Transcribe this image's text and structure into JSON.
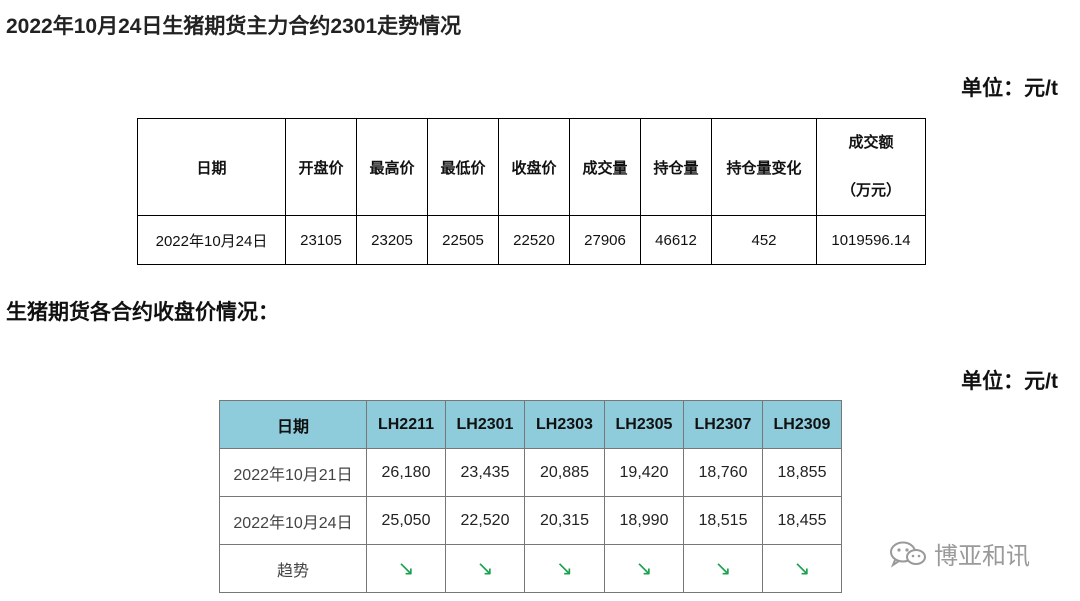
{
  "title": "2022年10月24日生猪期货主力合约2301走势情况",
  "unit_label": "单位：元/t",
  "table1": {
    "headers": [
      "日期",
      "开盘价",
      "最高价",
      "最低价",
      "收盘价",
      "成交量",
      "持仓量",
      "持仓量变化",
      "成交额",
      "（万元）"
    ],
    "row": [
      "2022年10月24日",
      "23105",
      "23205",
      "22505",
      "22520",
      "27906",
      "46612",
      "452",
      "1019596.14"
    ]
  },
  "section_title": "生猪期货各合约收盘价情况：",
  "table2": {
    "headers": [
      "日期",
      "LH2211",
      "LH2301",
      "LH2303",
      "LH2305",
      "LH2307",
      "LH2309"
    ],
    "rows": [
      [
        "2022年10月21日",
        "26,180",
        "23,435",
        "20,885",
        "19,420",
        "18,760",
        "18,855"
      ],
      [
        "2022年10月24日",
        "25,050",
        "22,520",
        "20,315",
        "18,990",
        "18,515",
        "18,455"
      ]
    ],
    "trend_label": "趋势",
    "trend_symbol": "↘",
    "trend_color": "#1aa150"
  },
  "watermark": {
    "icon": "wechat-icon",
    "text": "博亚和讯"
  }
}
